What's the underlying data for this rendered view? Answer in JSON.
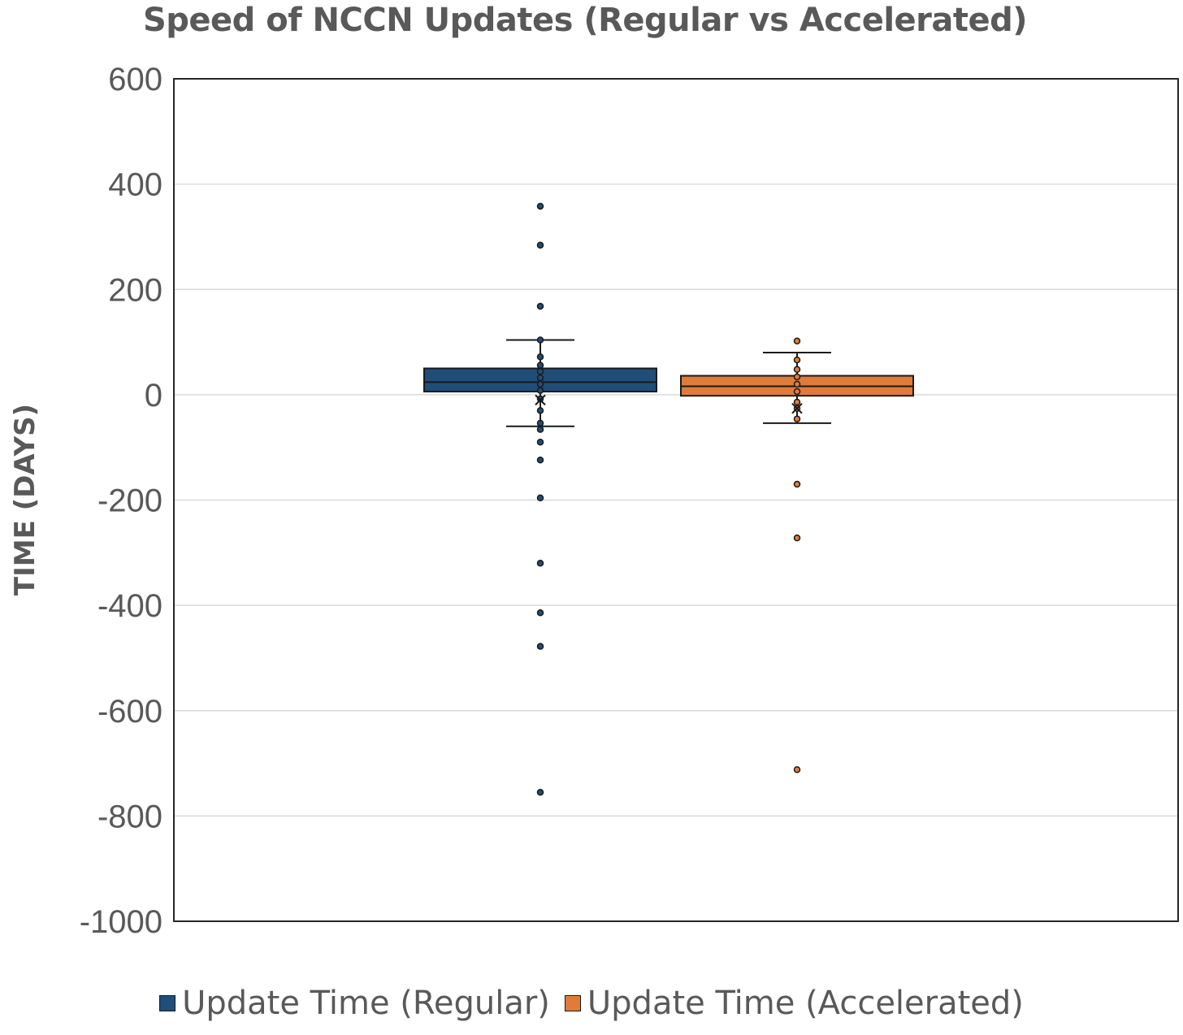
{
  "chart_data": {
    "type": "box",
    "title": "Speed of NCCN Updates (Regular vs Accelerated)",
    "xlabel": "",
    "ylabel": "TIME (DAYS)",
    "ylim": [
      -1000,
      600
    ],
    "y_ticks": [
      600,
      400,
      200,
      0,
      -200,
      -400,
      -600,
      -800,
      -1000
    ],
    "y_tick_labels": [
      "600",
      "400",
      "200",
      "0",
      "-200",
      "-400",
      "-600",
      "-800",
      "-1000"
    ],
    "grid": true,
    "legend_position": "bottom",
    "series": [
      {
        "name": "Update Time (Regular)",
        "color": "#1F4E79",
        "whisker_high": 104,
        "q3": 50,
        "median": 24,
        "q1": 6,
        "whisker_low": -60,
        "mean": -10,
        "points": [
          358,
          284,
          168,
          104,
          72,
          56,
          44,
          32,
          20,
          8,
          -8,
          -30,
          -54,
          -66,
          -90,
          -124,
          -196,
          -320,
          -414,
          -478,
          -755
        ]
      },
      {
        "name": "Update Time (Accelerated)",
        "color": "#E07B39",
        "whisker_high": 80,
        "q3": 36,
        "median": 16,
        "q1": -2,
        "whisker_low": -54,
        "mean": -26,
        "points": [
          102,
          66,
          48,
          34,
          20,
          6,
          -14,
          -26,
          -46,
          -170,
          -272,
          -712
        ]
      }
    ]
  }
}
